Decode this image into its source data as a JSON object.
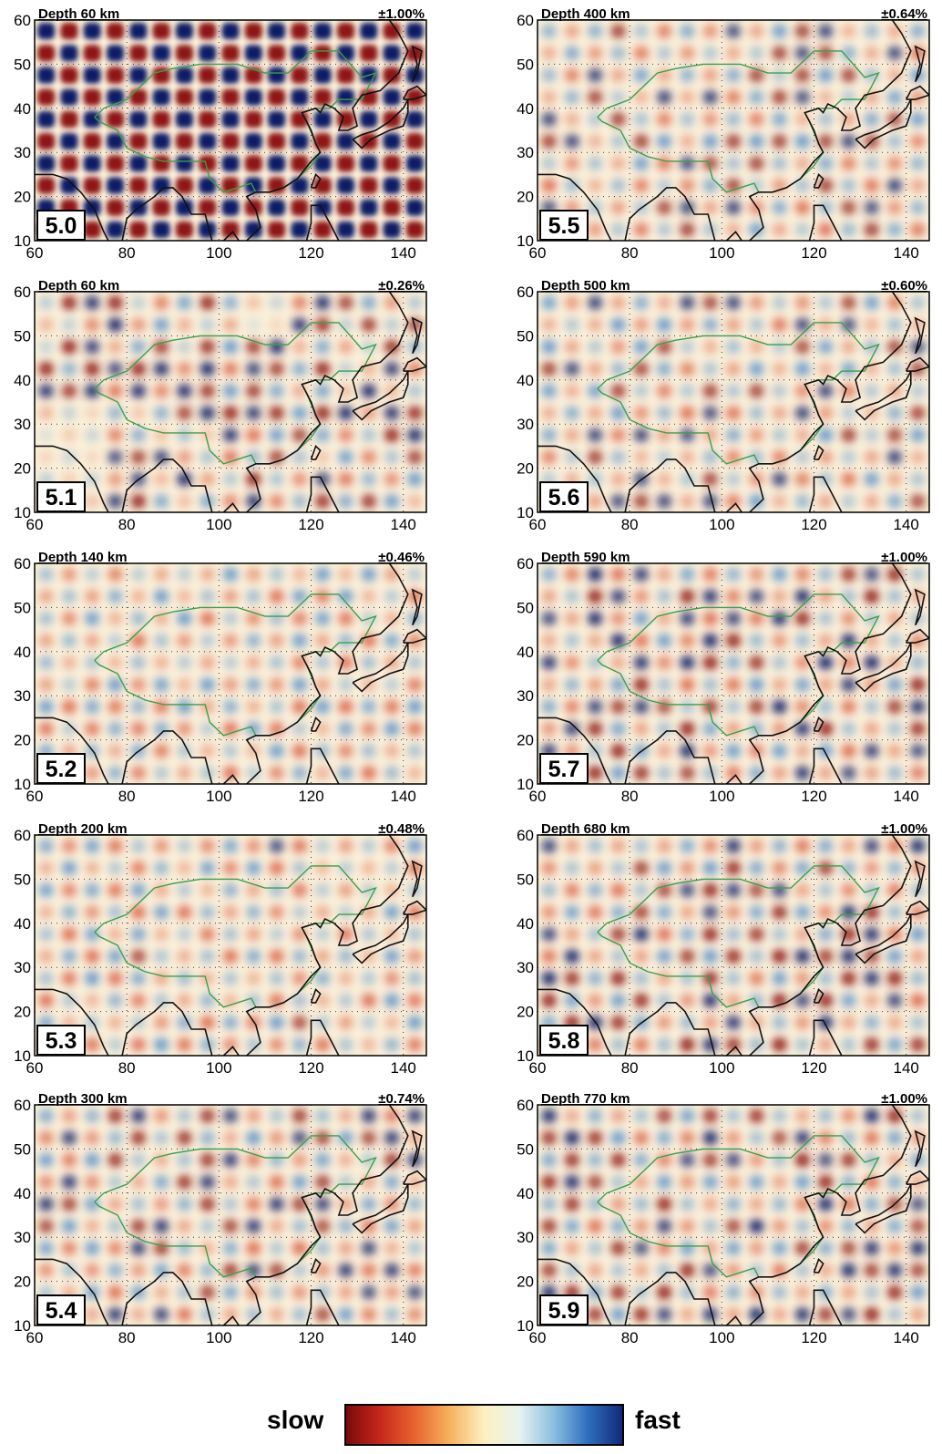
{
  "colorbar": {
    "left_label": "slow",
    "right_label": "fast"
  },
  "colors": {
    "slow": "#a51d16",
    "fast": "#0a1f6e",
    "coast": "#111111",
    "border": "#3aa04a"
  },
  "axes": {
    "x_ticks": [
      "60",
      "80",
      "100",
      "120",
      "140"
    ],
    "y_ticks": [
      "60",
      "50",
      "40",
      "30",
      "20",
      "10"
    ]
  },
  "chart_data": [
    {
      "type": "heatmap",
      "id": "5.0",
      "title": "Depth 60 km",
      "scale": "±1.00%",
      "amplitude": 1.0,
      "xlim": [
        60,
        145
      ],
      "ylim": [
        10,
        60
      ]
    },
    {
      "type": "heatmap",
      "id": "5.1",
      "title": "Depth 60 km",
      "scale": "±0.26%",
      "amplitude": 0.26,
      "xlim": [
        60,
        145
      ],
      "ylim": [
        10,
        60
      ]
    },
    {
      "type": "heatmap",
      "id": "5.2",
      "title": "Depth 140 km",
      "scale": "±0.46%",
      "amplitude": 0.46,
      "xlim": [
        60,
        145
      ],
      "ylim": [
        10,
        60
      ]
    },
    {
      "type": "heatmap",
      "id": "5.3",
      "title": "Depth 200 km",
      "scale": "±0.48%",
      "amplitude": 0.48,
      "xlim": [
        60,
        145
      ],
      "ylim": [
        10,
        60
      ]
    },
    {
      "type": "heatmap",
      "id": "5.4",
      "title": "Depth 300 km",
      "scale": "±0.74%",
      "amplitude": 0.74,
      "xlim": [
        60,
        145
      ],
      "ylim": [
        10,
        60
      ]
    },
    {
      "type": "heatmap",
      "id": "5.5",
      "title": "Depth 400 km",
      "scale": "±0.64%",
      "amplitude": 0.64,
      "xlim": [
        60,
        145
      ],
      "ylim": [
        10,
        60
      ]
    },
    {
      "type": "heatmap",
      "id": "5.6",
      "title": "Depth 500 km",
      "scale": "±0.60%",
      "amplitude": 0.6,
      "xlim": [
        60,
        145
      ],
      "ylim": [
        10,
        60
      ]
    },
    {
      "type": "heatmap",
      "id": "5.7",
      "title": "Depth 590 km",
      "scale": "±1.00%",
      "amplitude": 1.0,
      "xlim": [
        60,
        145
      ],
      "ylim": [
        10,
        60
      ]
    },
    {
      "type": "heatmap",
      "id": "5.8",
      "title": "Depth 680 km",
      "scale": "±1.00%",
      "amplitude": 1.0,
      "xlim": [
        60,
        145
      ],
      "ylim": [
        10,
        60
      ]
    },
    {
      "type": "heatmap",
      "id": "5.9",
      "title": "Depth 770 km",
      "scale": "±1.00%",
      "amplitude": 1.0,
      "xlim": [
        60,
        145
      ],
      "ylim": [
        10,
        60
      ]
    }
  ]
}
